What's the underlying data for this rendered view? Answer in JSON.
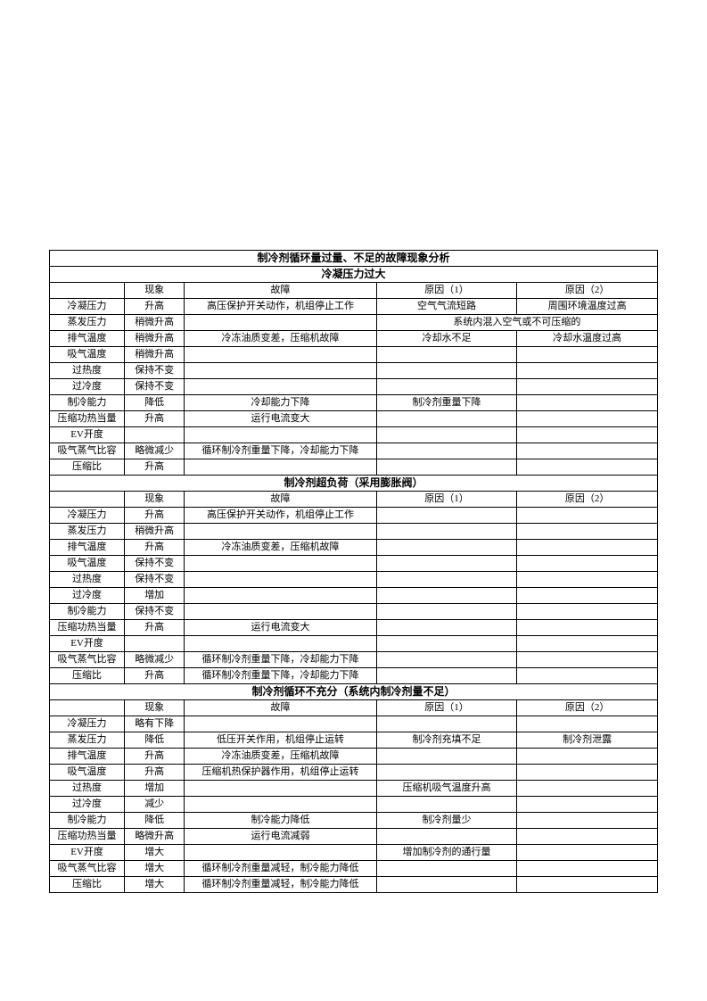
{
  "title": "制冷剂循环量过量、不足的故障现象分析",
  "sections": [
    {
      "subtitle": "冷凝压力过大",
      "headers": [
        "",
        "现象",
        "故障",
        "原因（1）",
        "原因（2）"
      ],
      "rows": [
        [
          "冷凝压力",
          "升高",
          "高压保护开关动作，机组停止工作",
          "空气气流短路",
          "周围环境温度过高"
        ],
        [
          "蒸发压力",
          "稍微升高",
          "",
          "merge:系统内混入空气或不可压缩的",
          ""
        ],
        [
          "排气温度",
          "稍微升高",
          "冷冻油质变差，压缩机故障",
          "冷却水不足",
          "冷却水温度过高"
        ],
        [
          "吸气温度",
          "稍微升高",
          "",
          "",
          ""
        ],
        [
          "过热度",
          "保持不变",
          "",
          "",
          ""
        ],
        [
          "过冷度",
          "保持不变",
          "",
          "",
          ""
        ],
        [
          "制冷能力",
          "降低",
          "冷却能力下降",
          "制冷剂重量下降",
          ""
        ],
        [
          "压缩功热当量",
          "升高",
          "运行电流变大",
          "",
          ""
        ],
        [
          "EV开度",
          "",
          "",
          "",
          ""
        ],
        [
          "吸气蒸气比容",
          "略微减少",
          "循环制冷剂重量下降，冷却能力下降",
          "",
          ""
        ],
        [
          "压缩比",
          "升高",
          "",
          "",
          ""
        ]
      ]
    },
    {
      "subtitle": "制冷剂超负荷（采用膨胀阀）",
      "headers": [
        "",
        "现象",
        "故障",
        "原因（1）",
        "原因（2）"
      ],
      "rows": [
        [
          "冷凝压力",
          "升高",
          "高压保护开关动作，机组停止工作",
          "",
          ""
        ],
        [
          "蒸发压力",
          "稍微升高",
          "",
          "",
          ""
        ],
        [
          "排气温度",
          "升高",
          "冷冻油质变差，压缩机故障",
          "",
          ""
        ],
        [
          "吸气温度",
          "保持不变",
          "",
          "",
          ""
        ],
        [
          "过热度",
          "保持不变",
          "",
          "",
          ""
        ],
        [
          "过冷度",
          "增加",
          "",
          "",
          ""
        ],
        [
          "制冷能力",
          "保持不变",
          "",
          "",
          ""
        ],
        [
          "压缩功热当量",
          "升高",
          "运行电流变大",
          "",
          ""
        ],
        [
          "EV开度",
          "",
          "",
          "",
          ""
        ],
        [
          "吸气蒸气比容",
          "略微减少",
          "循环制冷剂重量下降，冷却能力下降",
          "",
          ""
        ],
        [
          "压缩比",
          "升高",
          "循环制冷剂重量下降，冷却能力下降",
          "",
          ""
        ]
      ]
    },
    {
      "subtitle": "制冷剂循环不充分（系统内制冷剂量不足）",
      "headers": [
        "",
        "现象",
        "故障",
        "原因（1）",
        "原因（2）"
      ],
      "rows": [
        [
          "冷凝压力",
          "略有下降",
          "",
          "",
          ""
        ],
        [
          "蒸发压力",
          "降低",
          "低压开关作用，机组停止运转",
          "制冷剂充填不足",
          "制冷剂泄露"
        ],
        [
          "排气温度",
          "升高",
          "冷冻油质变差，压缩机故障",
          "",
          ""
        ],
        [
          "吸气温度",
          "升高",
          "压缩机热保护器作用，机组停止运转",
          "",
          ""
        ],
        [
          "过热度",
          "增加",
          "",
          "压缩机吸气温度升高",
          ""
        ],
        [
          "过冷度",
          "减少",
          "",
          "",
          ""
        ],
        [
          "制冷能力",
          "降低",
          "制冷能力降低",
          "制冷剂量少",
          ""
        ],
        [
          "压缩功热当量",
          "略微升高",
          "运行电流减弱",
          "",
          ""
        ],
        [
          "EV开度",
          "增大",
          "",
          "增加制冷剂的通行量",
          ""
        ],
        [
          "吸气蒸气比容",
          "增大",
          "循环制冷剂重量减轻，制冷能力降低",
          "",
          ""
        ],
        [
          "压缩比",
          "增大",
          "循环制冷剂重量减轻，制冷能力降低",
          "",
          ""
        ]
      ]
    }
  ]
}
